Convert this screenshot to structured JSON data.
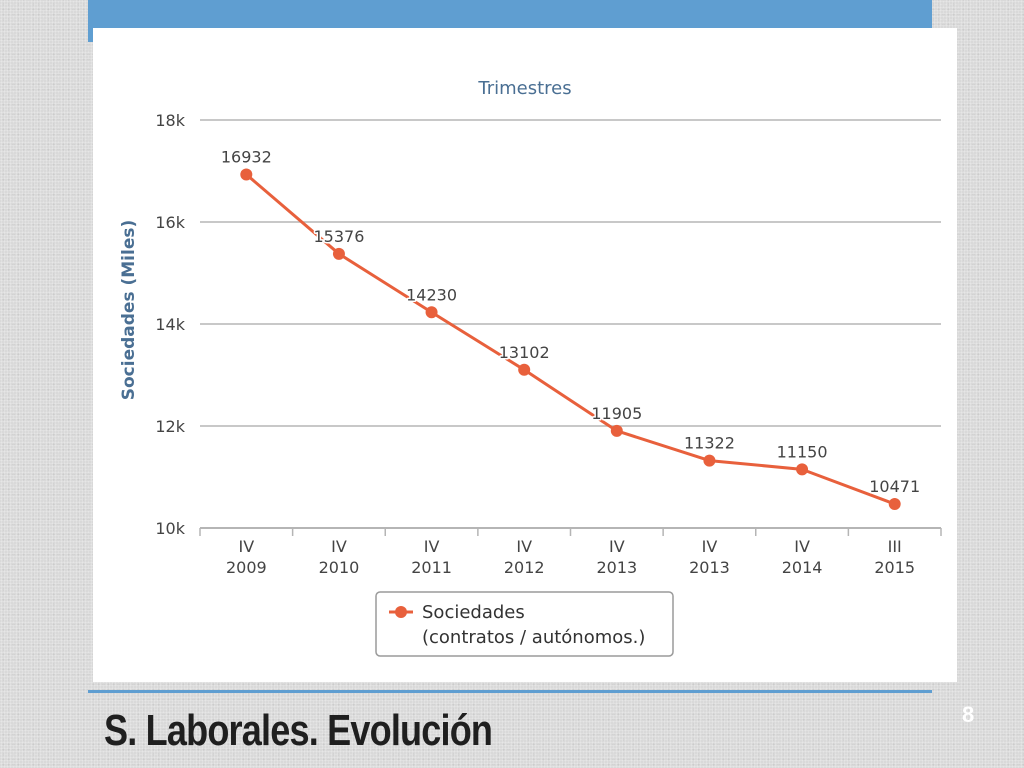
{
  "slide": {
    "title": "S. Laborales. Evolución",
    "page_number": "8",
    "accent_color": "#5f9ed1"
  },
  "chart_data": {
    "type": "line",
    "title": "Trimestres",
    "ylabel": "Sociedades (Miles)",
    "xlabel": "",
    "ylim": [
      10000,
      18000
    ],
    "yticks": [
      10000,
      12000,
      14000,
      16000,
      18000
    ],
    "ytick_labels": [
      "10k",
      "12k",
      "14k",
      "16k",
      "18k"
    ],
    "grid": true,
    "categories": [
      [
        "IV",
        "2009"
      ],
      [
        "IV",
        "2010"
      ],
      [
        "IV",
        "2011"
      ],
      [
        "IV",
        "2012"
      ],
      [
        "IV",
        "2013"
      ],
      [
        "IV",
        "2013"
      ],
      [
        "IV",
        "2014"
      ],
      [
        "III",
        "2015"
      ]
    ],
    "series": [
      {
        "name": "Sociedades (contratos / autónomos.)",
        "legend_lines": [
          "Sociedades",
          "(contratos / autónomos.)"
        ],
        "color": "#e8603c",
        "values": [
          16932,
          15376,
          14230,
          13102,
          11905,
          11322,
          11150,
          10471
        ]
      }
    ],
    "legend_position": "bottom-center"
  }
}
